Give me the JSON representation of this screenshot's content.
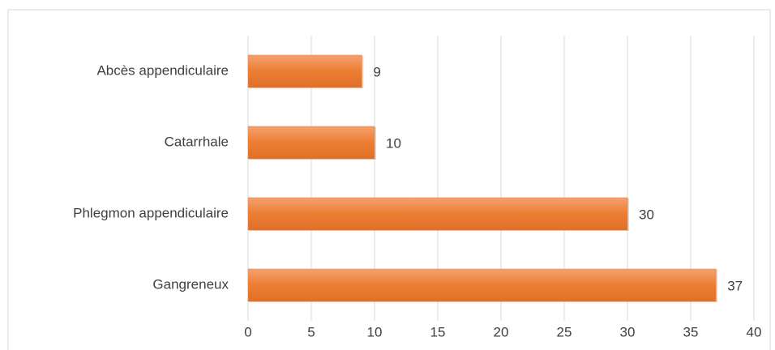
{
  "chart_data": {
    "type": "bar",
    "orientation": "horizontal",
    "categories": [
      "Abcès appendiculaire",
      "Catarrhale",
      "Phlegmon appendiculaire",
      "Gangreneux"
    ],
    "values": [
      9,
      10,
      30,
      37
    ],
    "color": "#ed7d31",
    "xlim": [
      0,
      40
    ],
    "xticks": [
      0,
      5,
      10,
      15,
      20,
      25,
      30,
      35,
      40
    ],
    "grid": true
  }
}
